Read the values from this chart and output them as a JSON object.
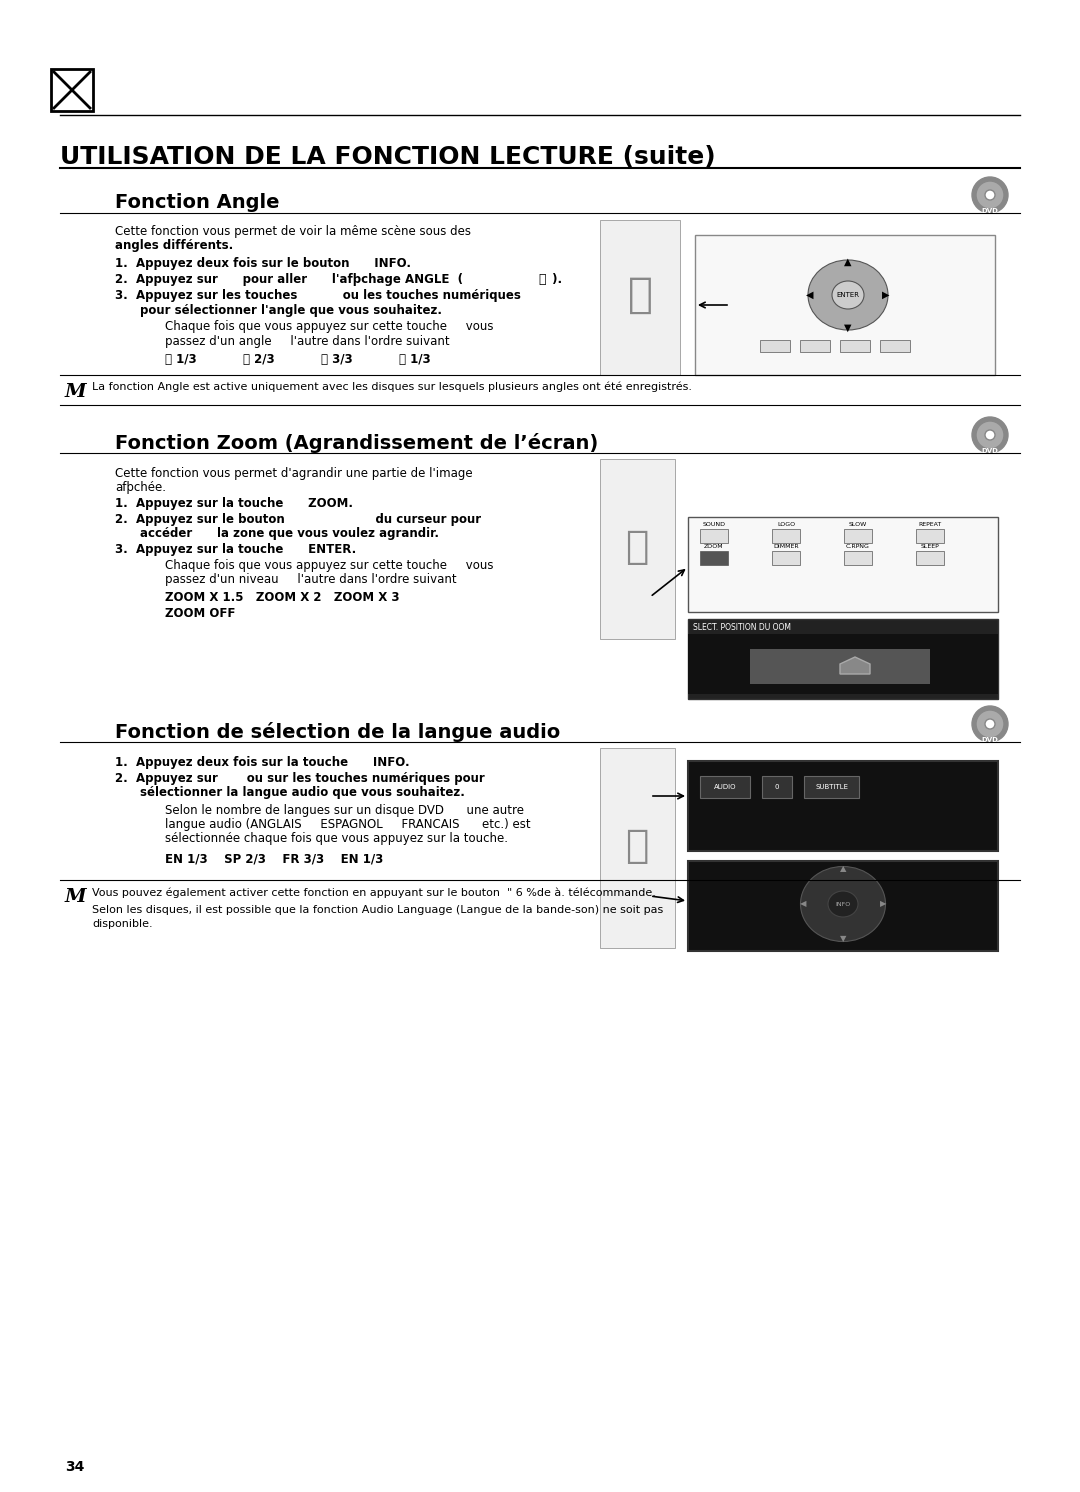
{
  "title": "UTILISATION DE LA FONCTION LECTURE (suite)",
  "section1_title": "Fonction Angle",
  "section2_title": "Fonction Zoom (Agrandissement de l’écran)",
  "section3_title": "Fonction de sélection de la langue audio",
  "bg_color": "#ffffff",
  "text_color": "#000000",
  "page_number": "34"
}
